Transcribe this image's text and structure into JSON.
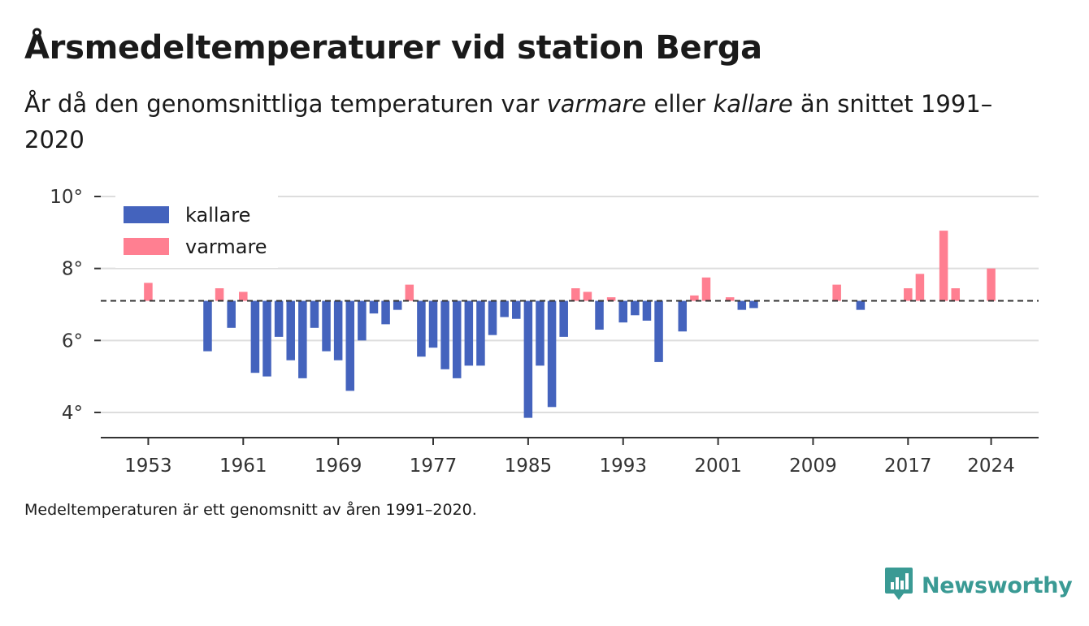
{
  "header": {
    "title": "Årsmedeltemperaturer vid station Berga",
    "subtitle_pre": "År då den genomsnittliga temperaturen var ",
    "subtitle_warm": "varmare",
    "subtitle_mid": " eller ",
    "subtitle_cold": "kallare",
    "subtitle_post": " än snittet 1991–2020"
  },
  "footnote": "Medeltemperaturen är ett genomsnitt av åren 1991–2020.",
  "brand": {
    "name": "Newsworthy",
    "color": "#3a9a94",
    "icon": "newsworthy-logo-icon"
  },
  "colors": {
    "kallare": "#4463bd",
    "varmare": "#ff7f91",
    "grid": "#dddddd",
    "axis": "#333333",
    "baseline": "#333333"
  },
  "chart_data": {
    "type": "bar",
    "title": "Årsmedeltemperaturer vid station Berga",
    "baseline": 7.1,
    "ylim": [
      3.3,
      10
    ],
    "yticks": [
      4,
      6,
      8,
      10
    ],
    "ytick_labels": [
      "4°",
      "6°",
      "8°",
      "10°"
    ],
    "xticks": [
      1953,
      1961,
      1969,
      1977,
      1985,
      1993,
      2001,
      2009,
      2017,
      2024
    ],
    "xlim": [
      1949,
      2028
    ],
    "grid": true,
    "legend": {
      "position": "top-left",
      "entries": [
        "kallare",
        "varmare"
      ]
    },
    "series": [
      {
        "name": "kallare",
        "color": "#4463bd",
        "points": [
          [
            1958,
            5.7
          ],
          [
            1960,
            6.35
          ],
          [
            1962,
            5.1
          ],
          [
            1963,
            5.0
          ],
          [
            1964,
            6.1
          ],
          [
            1965,
            5.45
          ],
          [
            1966,
            4.95
          ],
          [
            1967,
            6.35
          ],
          [
            1968,
            5.7
          ],
          [
            1969,
            5.45
          ],
          [
            1970,
            4.6
          ],
          [
            1971,
            6.0
          ],
          [
            1972,
            6.75
          ],
          [
            1973,
            6.45
          ],
          [
            1974,
            6.85
          ],
          [
            1976,
            5.55
          ],
          [
            1977,
            5.8
          ],
          [
            1978,
            5.2
          ],
          [
            1979,
            4.95
          ],
          [
            1980,
            5.3
          ],
          [
            1981,
            5.3
          ],
          [
            1982,
            6.15
          ],
          [
            1983,
            6.65
          ],
          [
            1984,
            6.6
          ],
          [
            1985,
            3.85
          ],
          [
            1986,
            5.3
          ],
          [
            1987,
            4.15
          ],
          [
            1988,
            6.1
          ],
          [
            1991,
            6.3
          ],
          [
            1993,
            6.5
          ],
          [
            1994,
            6.7
          ],
          [
            1995,
            6.55
          ],
          [
            1996,
            5.4
          ],
          [
            1998,
            6.25
          ],
          [
            2003,
            6.85
          ],
          [
            2004,
            6.9
          ],
          [
            2013,
            6.85
          ]
        ]
      },
      {
        "name": "varmare",
        "color": "#ff7f91",
        "points": [
          [
            1953,
            7.6
          ],
          [
            1959,
            7.45
          ],
          [
            1961,
            7.35
          ],
          [
            1975,
            7.55
          ],
          [
            1989,
            7.45
          ],
          [
            1990,
            7.35
          ],
          [
            1992,
            7.2
          ],
          [
            1999,
            7.25
          ],
          [
            2000,
            7.75
          ],
          [
            2002,
            7.2
          ],
          [
            2011,
            7.55
          ],
          [
            2017,
            7.45
          ],
          [
            2018,
            7.85
          ],
          [
            2020,
            9.05
          ],
          [
            2021,
            7.45
          ],
          [
            2024,
            8.0
          ]
        ]
      }
    ]
  }
}
